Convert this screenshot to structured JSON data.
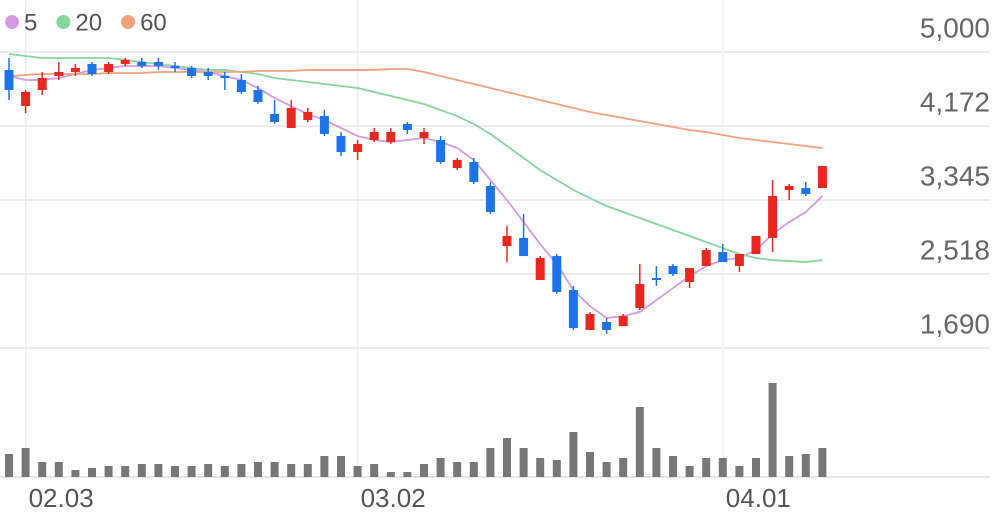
{
  "chart_data": {
    "type": "candlestick",
    "categories": [
      null,
      "02.03",
      null,
      null,
      null,
      null,
      null,
      null,
      null,
      null,
      null,
      null,
      null,
      null,
      null,
      null,
      null,
      null,
      null,
      null,
      null,
      "03.02",
      null,
      null,
      null,
      null,
      null,
      null,
      null,
      null,
      null,
      null,
      null,
      null,
      null,
      null,
      null,
      null,
      null,
      null,
      null,
      null,
      null,
      "04.01",
      null,
      null,
      null,
      null,
      null,
      null
    ],
    "open": [
      4799,
      4396,
      4575,
      4732,
      4776,
      4866,
      4776,
      4866,
      4888,
      4888,
      4844,
      4821,
      4776,
      4732,
      4687,
      4575,
      4307,
      4150,
      4240,
      4284,
      4061,
      3882,
      4016,
      3994,
      4195,
      4039,
      4016,
      3703,
      3770,
      3502,
      2831,
      2921,
      2451,
      2719,
      2339,
      1892,
      1982,
      1936,
      2138,
      2473,
      2608,
      2429,
      2608,
      2764,
      2608,
      2742,
      2921,
      3457,
      3479,
      3479
    ],
    "high": [
      4933,
      4576,
      4776,
      4888,
      4866,
      4888,
      4888,
      4933,
      4933,
      4933,
      4888,
      4844,
      4821,
      4776,
      4754,
      4620,
      4463,
      4463,
      4374,
      4352,
      4106,
      4016,
      4150,
      4150,
      4217,
      4150,
      4061,
      3815,
      3815,
      3547,
      3055,
      3189,
      2719,
      2742,
      2384,
      2093,
      2026,
      2071,
      2630,
      2608,
      2630,
      2585,
      2809,
      2854,
      2742,
      2943,
      3569,
      3524,
      3547,
      3725
    ],
    "low": [
      4463,
      4318,
      4519,
      4687,
      4732,
      4732,
      4754,
      4844,
      4821,
      4799,
      4776,
      4709,
      4687,
      4575,
      4530,
      4419,
      4195,
      4150,
      4217,
      4061,
      3837,
      3793,
      3994,
      3971,
      4083,
      3971,
      3748,
      3681,
      3524,
      3189,
      2652,
      2719,
      2451,
      2295,
      1892,
      1892,
      1847,
      1936,
      2116,
      2384,
      2496,
      2362,
      2608,
      2652,
      2541,
      2742,
      2764,
      3345,
      3390,
      3479
    ],
    "close": [
      4575,
      4553,
      4709,
      4776,
      4821,
      4754,
      4866,
      4911,
      4844,
      4844,
      4821,
      4732,
      4732,
      4709,
      4553,
      4441,
      4217,
      4374,
      4329,
      4083,
      3882,
      3971,
      4106,
      4106,
      4128,
      4106,
      3770,
      3793,
      3547,
      3211,
      2943,
      2719,
      2697,
      2317,
      1914,
      2071,
      1892,
      2048,
      2406,
      2451,
      2518,
      2585,
      2786,
      2652,
      2742,
      2943,
      3390,
      3502,
      3412,
      3725
    ],
    "up_color": "#e8281e",
    "down_color": "#1c74e6",
    "series": [
      {
        "name": "5",
        "color": "#d59ae6",
        "values": [
          4731,
          4687,
          4687,
          4709,
          4754,
          4799,
          4821,
          4843,
          4843,
          4843,
          4821,
          4799,
          4776,
          4731,
          4687,
          4597,
          4485,
          4396,
          4306,
          4239,
          4150,
          4061,
          4016,
          3994,
          4016,
          4038,
          3994,
          3926,
          3792,
          3569,
          3345,
          3099,
          2853,
          2629,
          2339,
          2160,
          2026,
          2048,
          2093,
          2227,
          2361,
          2495,
          2607,
          2674,
          2697,
          2786,
          2965,
          3099,
          3211,
          3390
        ]
      },
      {
        "name": "20",
        "color": "#86d6a0",
        "values": [
          4977,
          4955,
          4933,
          4933,
          4933,
          4933,
          4933,
          4911,
          4888,
          4866,
          4843,
          4821,
          4799,
          4799,
          4776,
          4754,
          4709,
          4687,
          4664,
          4642,
          4620,
          4597,
          4552,
          4508,
          4463,
          4418,
          4351,
          4284,
          4195,
          4083,
          3949,
          3815,
          3680,
          3569,
          3457,
          3367,
          3278,
          3211,
          3144,
          3077,
          3010,
          2943,
          2875,
          2808,
          2741,
          2697,
          2674,
          2663,
          2652,
          2674
        ]
      },
      {
        "name": "60",
        "color": "#f4a27c",
        "values": [
          4731,
          4743,
          4754,
          4754,
          4754,
          4754,
          4765,
          4765,
          4765,
          4776,
          4776,
          4776,
          4776,
          4776,
          4776,
          4787,
          4787,
          4787,
          4799,
          4799,
          4799,
          4799,
          4799,
          4810,
          4810,
          4776,
          4731,
          4687,
          4642,
          4597,
          4552,
          4508,
          4463,
          4418,
          4374,
          4329,
          4295,
          4262,
          4228,
          4195,
          4161,
          4128,
          4105,
          4072,
          4038,
          4016,
          3994,
          3971,
          3949,
          3926
        ]
      }
    ],
    "volume": [
      23,
      29,
      15,
      15,
      7,
      9,
      11,
      11,
      13,
      13,
      11,
      11,
      13,
      11,
      13,
      15,
      15,
      13,
      13,
      21,
      21,
      11,
      13,
      5,
      5,
      13,
      19,
      15,
      15,
      29,
      39,
      29,
      19,
      17,
      45,
      25,
      15,
      19,
      70,
      29,
      21,
      11,
      19,
      19,
      11,
      19,
      94,
      21,
      23,
      29
    ],
    "volume_color": "#777777",
    "vlim": [
      0,
      100
    ],
    "ylim": [
      1557,
      5581
    ],
    "yticks": [
      {
        "value": 5000,
        "label": "5,000"
      },
      {
        "value": 4172,
        "label": "4,172"
      },
      {
        "value": 3345,
        "label": "3,345"
      },
      {
        "value": 2518,
        "label": "2,518"
      },
      {
        "value": 1690,
        "label": "1,690"
      }
    ],
    "grid": true
  }
}
